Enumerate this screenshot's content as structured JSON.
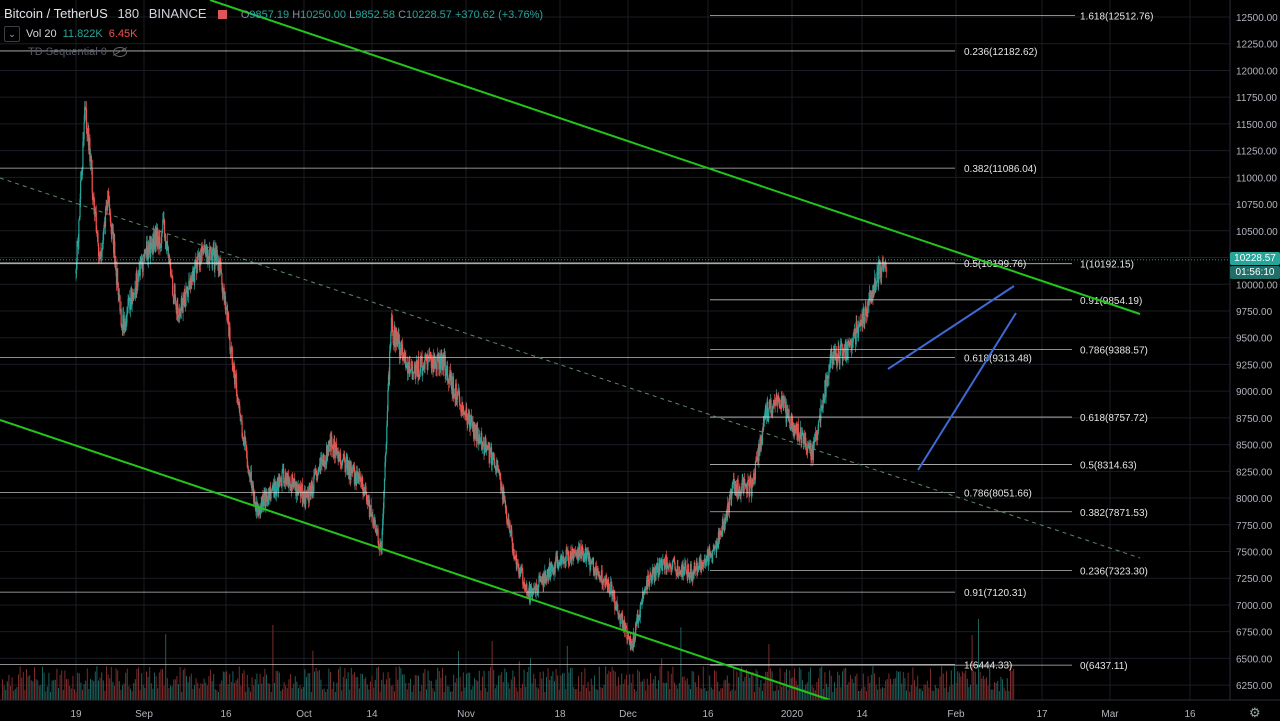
{
  "legend": {
    "symbol": "Bitcoin / TetherUS",
    "interval": "180",
    "exchange": "BINANCE",
    "o_label": "O",
    "o": "9857.19",
    "h_label": "H",
    "h": "10250.00",
    "l_label": "L",
    "l": "9852.58",
    "c_label": "C",
    "c": "10228.57",
    "change": "+370.62 (+3.76%)"
  },
  "volume": {
    "label": "Vol 20",
    "v1": "11.822K",
    "v2": "6.45K"
  },
  "indicator": {
    "label": "TD Sequential 0"
  },
  "price_tags": {
    "last_price": "10228.57",
    "countdown": "01:56:10"
  },
  "colors": {
    "background": "#000000",
    "grid": "#1a1d24",
    "up": "#26a69a",
    "down": "#ef5350",
    "channel": "#22c51a",
    "wedge": "#3d6ad6",
    "fib": "#e0e0e0",
    "last_price_tag": "#26a69a"
  },
  "chart_data": {
    "type": "candlestick",
    "ylim": [
      6130,
      12640
    ],
    "y_ticks": [
      "12500.00",
      "12250.00",
      "12000.00",
      "11750.00",
      "11500.00",
      "11250.00",
      "11000.00",
      "10750.00",
      "10500.00",
      "10250.00",
      "10000.00",
      "9750.00",
      "9500.00",
      "9250.00",
      "9000.00",
      "8750.00",
      "8500.00",
      "8250.00",
      "8000.00",
      "7750.00",
      "7500.00",
      "7250.00",
      "7000.00",
      "6750.00",
      "6500.00",
      "6250.00"
    ],
    "x_ticks": [
      "19",
      "Sep",
      "16",
      "Oct",
      "14",
      "Nov",
      "18",
      "Dec",
      "16",
      "2020",
      "14",
      "Feb",
      "17",
      "Mar",
      "16"
    ],
    "fib_labels": [
      {
        "text": "1.618(12512.76)",
        "price": 12512.76
      },
      {
        "text": "0.236(12182.62)",
        "price": 12182.62
      },
      {
        "text": "0.382(11086.04)",
        "price": 11086.04
      },
      {
        "text": "0.5(10199.76)",
        "price": 10199.76
      },
      {
        "text": "1(10192.15)",
        "price": 10192.15
      },
      {
        "text": "0.91(9854.19)",
        "price": 9854.19
      },
      {
        "text": "0.786(9388.57)",
        "price": 9388.57
      },
      {
        "text": "0.618(9313.48)",
        "price": 9313.48
      },
      {
        "text": "0.618(8757.72)",
        "price": 8757.72
      },
      {
        "text": "0.5(8314.63)",
        "price": 8314.63
      },
      {
        "text": "0.786(8051.66)",
        "price": 8051.66
      },
      {
        "text": "0.382(7871.53)",
        "price": 7871.53
      },
      {
        "text": "0.236(7323.30)",
        "price": 7323.3
      },
      {
        "text": "0.91(7120.31)",
        "price": 7120.31
      },
      {
        "text": "1(6444.33)",
        "price": 6444.33
      },
      {
        "text": "0(6437.11)",
        "price": 6437.11
      }
    ],
    "price_path": [
      [
        "Aug 19",
        10100
      ],
      [
        "Aug 21",
        11700
      ],
      [
        "Aug 24",
        10200
      ],
      [
        "Aug 26",
        10800
      ],
      [
        "Aug 29",
        9600
      ],
      [
        "Sep 3",
        10300
      ],
      [
        "Sep 7",
        10500
      ],
      [
        "Sep 10",
        9700
      ],
      [
        "Sep 15",
        10300
      ],
      [
        "Sep 19",
        10200
      ],
      [
        "Sep 24",
        8600
      ],
      [
        "Sep 27",
        7900
      ],
      [
        "Oct 3",
        8200
      ],
      [
        "Oct 8",
        8000
      ],
      [
        "Oct 13",
        8500
      ],
      [
        "Oct 20",
        8100
      ],
      [
        "Oct 24",
        7500
      ],
      [
        "Oct 26",
        9600
      ],
      [
        "Oct 30",
        9200
      ],
      [
        "Nov 6",
        9300
      ],
      [
        "Nov 12",
        8700
      ],
      [
        "Nov 18",
        8300
      ],
      [
        "Nov 22",
        7400
      ],
      [
        "Nov 25",
        7100
      ],
      [
        "Dec 1",
        7400
      ],
      [
        "Dec 6",
        7500
      ],
      [
        "Dec 12",
        7200
      ],
      [
        "Dec 17",
        6600
      ],
      [
        "Dec 20",
        7200
      ],
      [
        "Dec 24",
        7400
      ],
      [
        "Dec 30",
        7300
      ],
      [
        "Jan 4",
        7500
      ],
      [
        "Jan 8",
        8100
      ],
      [
        "Jan 12",
        8100
      ],
      [
        "Jan 15",
        8800
      ],
      [
        "Jan 18",
        8900
      ],
      [
        "Jan 22",
        8600
      ],
      [
        "Jan 25",
        8400
      ],
      [
        "Jan 29",
        9300
      ],
      [
        "Feb 2",
        9400
      ],
      [
        "Feb 6",
        9800
      ],
      [
        "Feb 8",
        10100
      ],
      [
        "Feb 10",
        10228.57
      ]
    ]
  }
}
